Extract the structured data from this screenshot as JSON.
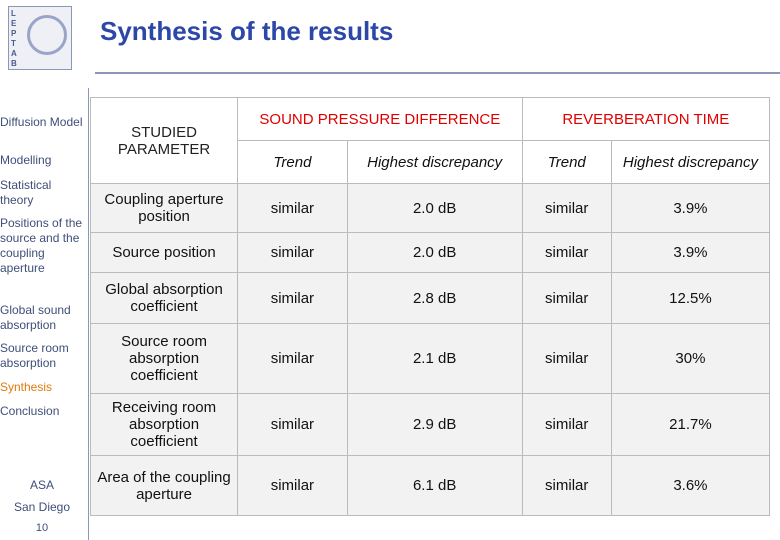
{
  "header": {
    "title": "Synthesis of the results",
    "logo": "LEPTAB"
  },
  "sidebar": {
    "items": [
      "Diffusion Model",
      "Modelling",
      "Statistical theory",
      "Positions of the source and the coupling aperture",
      "Global sound absorption",
      "Source room absorption",
      "Synthesis",
      "Conclusion"
    ],
    "active": 6
  },
  "footer": {
    "event": "ASA",
    "place": "San Diego",
    "page": "10"
  },
  "table": {
    "corner": "STUDIED PARAMETER",
    "groups": [
      "SOUND PRESSURE DIFFERENCE",
      "REVERBERATION TIME"
    ],
    "subheaders": [
      "Trend",
      "Highest discrepancy",
      "Trend",
      "Highest discrepancy"
    ],
    "rows": [
      [
        "Coupling aperture position",
        "similar",
        "2.0 dB",
        "similar",
        "3.9%"
      ],
      [
        "Source position",
        "similar",
        "2.0 dB",
        "similar",
        "3.9%"
      ],
      [
        "Global absorption coefficient",
        "similar",
        "2.8 dB",
        "similar",
        "12.5%"
      ],
      [
        "Source room absorption coefficient",
        "similar",
        "2.1 dB",
        "similar",
        "30%"
      ],
      [
        "Receiving room absorption coefficient",
        "similar",
        "2.9 dB",
        "similar",
        "21.7%"
      ],
      [
        "Area of the coupling aperture",
        "similar",
        "6.1 dB",
        "similar",
        "3.6%"
      ]
    ]
  }
}
